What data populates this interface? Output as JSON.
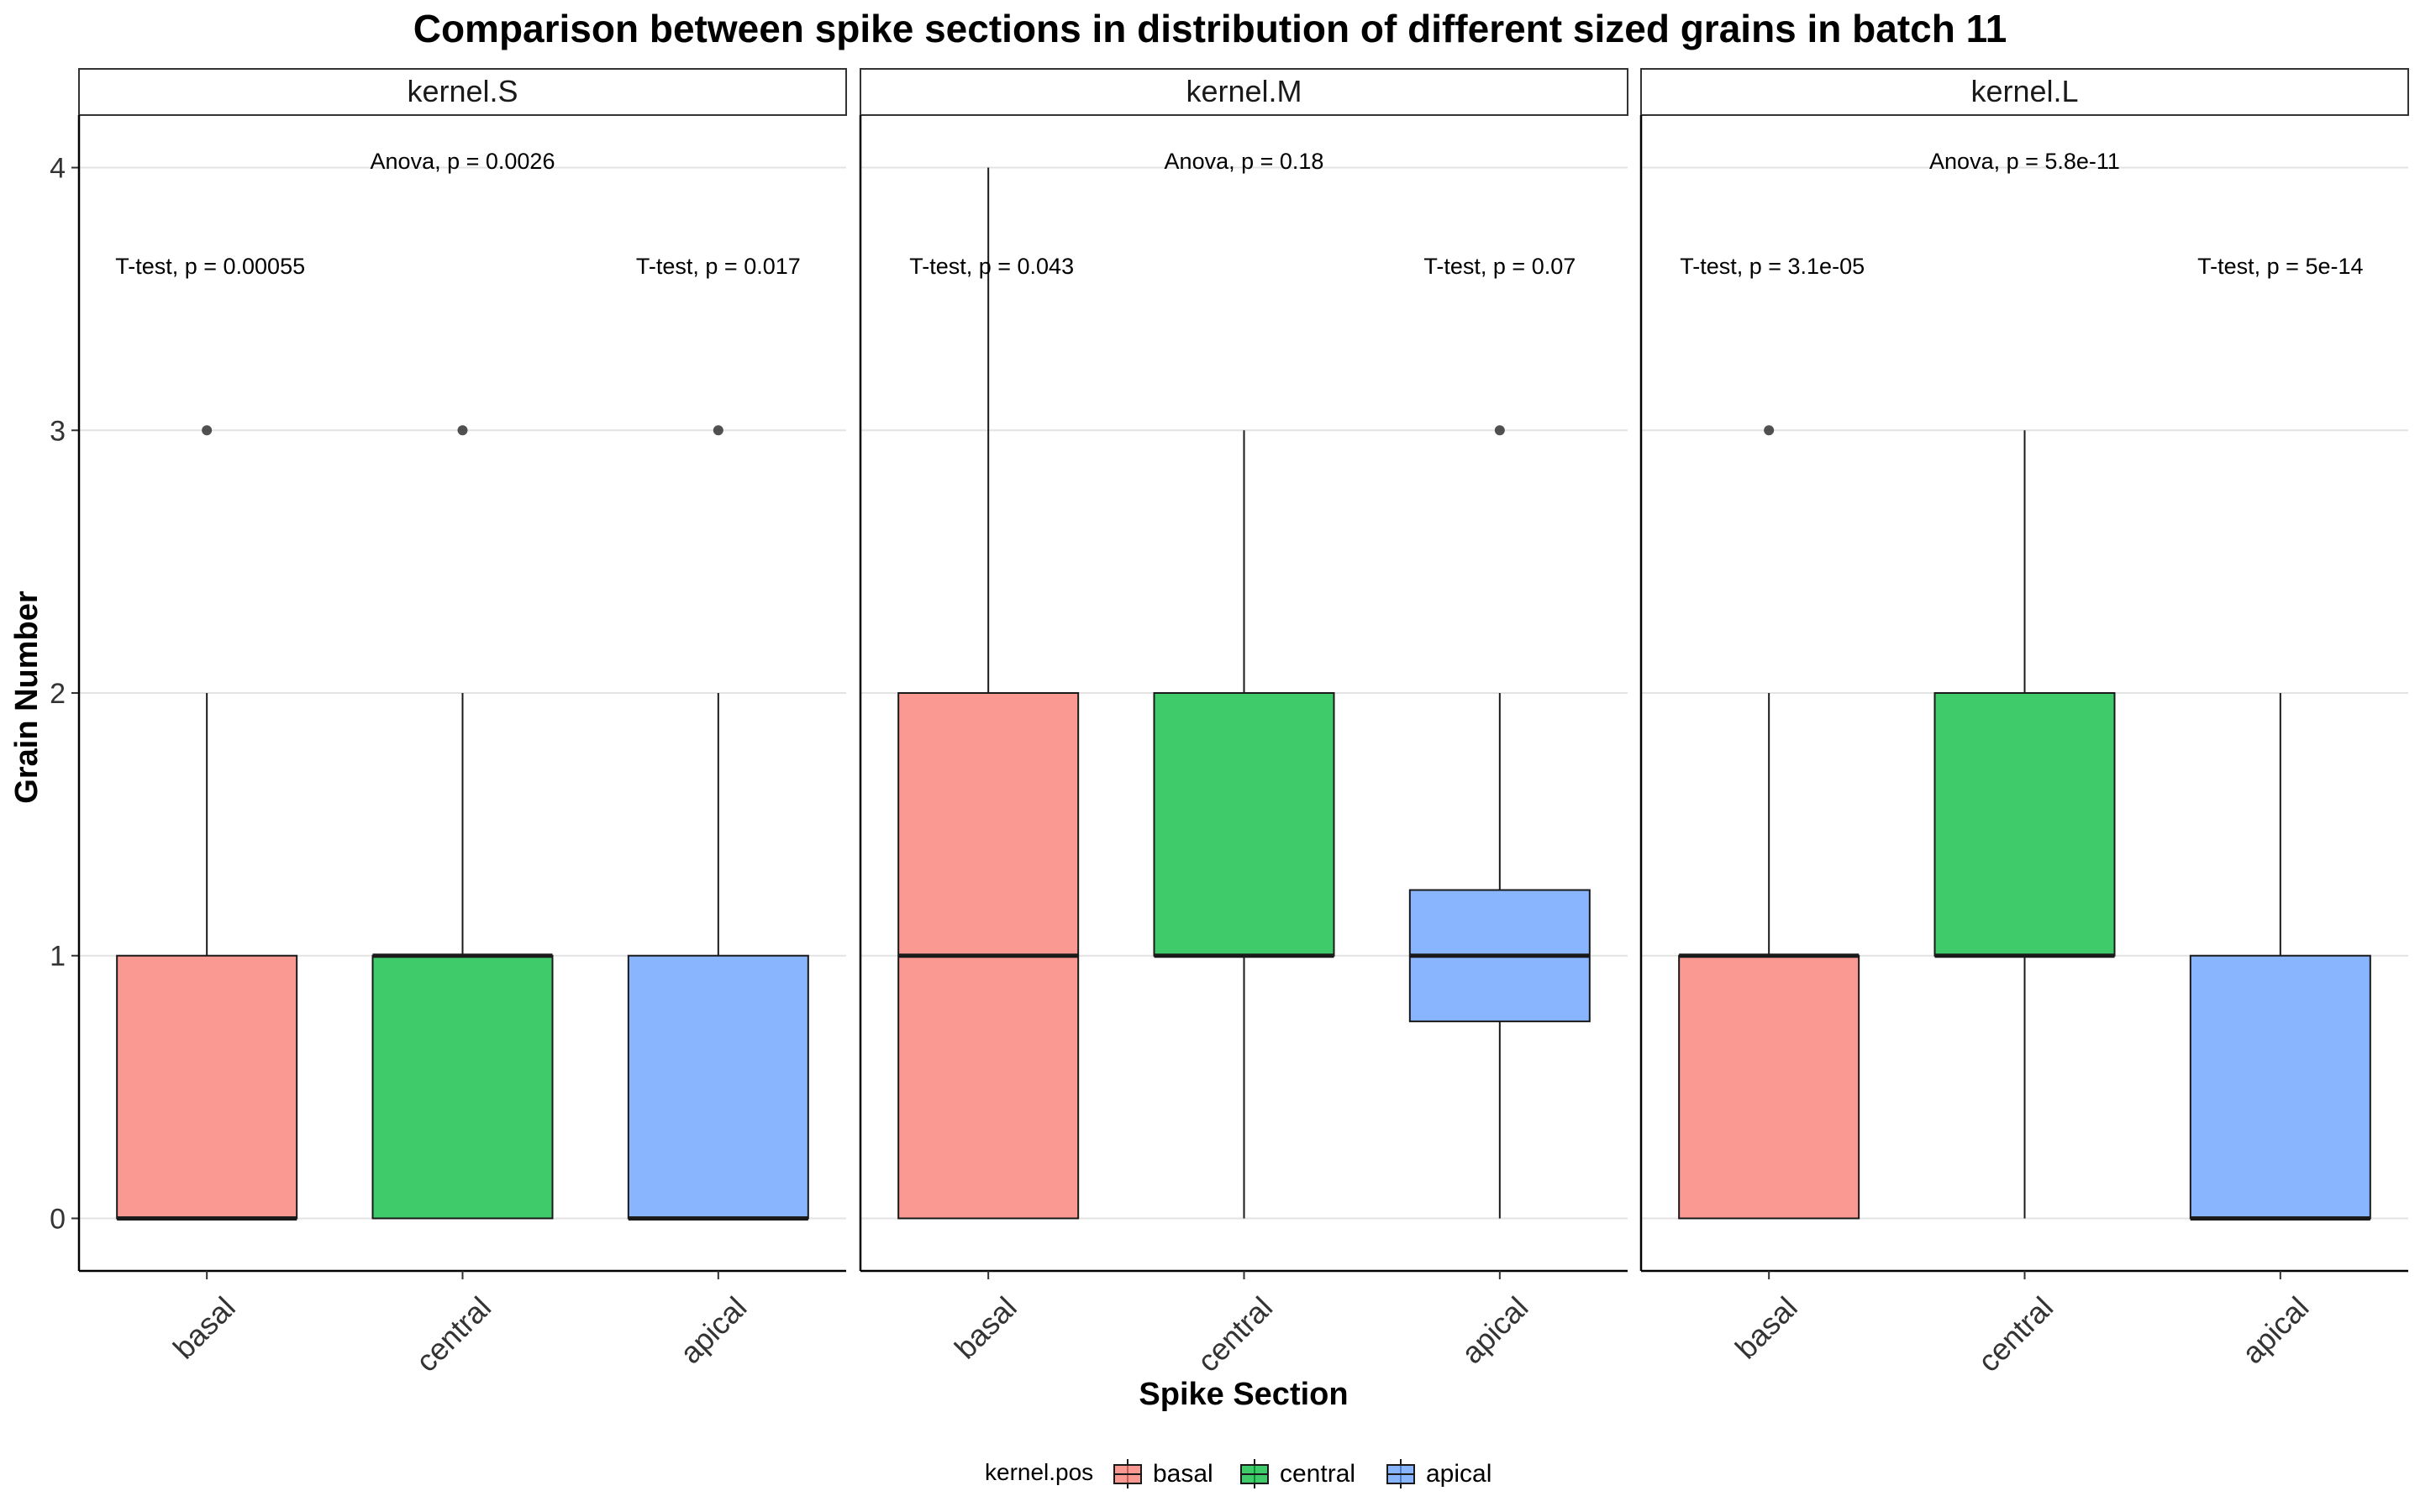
{
  "chart_data": {
    "type": "box",
    "title": "Comparison between spike sections in distribution of different sized grains in batch 11",
    "xlabel": "Spike Section",
    "ylabel": "Grain Number",
    "ylim": [
      -0.2,
      4.2
    ],
    "yticks": [
      0,
      1,
      2,
      3,
      4
    ],
    "categories": [
      "basal",
      "central",
      "apical"
    ],
    "grid": true,
    "legend": {
      "title": "kernel.pos",
      "position": "bottom",
      "entries": [
        {
          "name": "basal",
          "color": "#F8766D"
        },
        {
          "name": "central",
          "color": "#00BA38"
        },
        {
          "name": "apical",
          "color": "#619CFF"
        }
      ]
    },
    "facets": [
      {
        "label": "kernel.S",
        "anova": "Anova, p = 0.0026",
        "ttests": [
          "T-test, p = 0.00055",
          "T-test, p = 0.017"
        ],
        "boxes": [
          {
            "category": "basal",
            "q1": 0,
            "median": 0,
            "q3": 1,
            "whisker_low": 0,
            "whisker_high": 2,
            "outliers": [
              3
            ]
          },
          {
            "category": "central",
            "q1": 0,
            "median": 1,
            "q3": 1,
            "whisker_low": 0,
            "whisker_high": 2,
            "outliers": [
              3
            ]
          },
          {
            "category": "apical",
            "q1": 0,
            "median": 0,
            "q3": 1,
            "whisker_low": 0,
            "whisker_high": 2,
            "outliers": [
              3
            ]
          }
        ]
      },
      {
        "label": "kernel.M",
        "anova": "Anova, p = 0.18",
        "ttests": [
          "T-test, p = 0.043",
          "T-test, p = 0.07"
        ],
        "boxes": [
          {
            "category": "basal",
            "q1": 0,
            "median": 1,
            "q3": 2,
            "whisker_low": 0,
            "whisker_high": 4,
            "outliers": []
          },
          {
            "category": "central",
            "q1": 1,
            "median": 1,
            "q3": 2,
            "whisker_low": 0,
            "whisker_high": 3,
            "outliers": []
          },
          {
            "category": "apical",
            "q1": 0.75,
            "median": 1,
            "q3": 1.25,
            "whisker_low": 0,
            "whisker_high": 2,
            "outliers": [
              3
            ]
          }
        ]
      },
      {
        "label": "kernel.L",
        "anova": "Anova, p = 5.8e-11",
        "ttests": [
          "T-test, p = 3.1e-05",
          "T-test, p = 5e-14"
        ],
        "boxes": [
          {
            "category": "basal",
            "q1": 0,
            "median": 1,
            "q3": 1,
            "whisker_low": 0,
            "whisker_high": 2,
            "outliers": [
              3
            ]
          },
          {
            "category": "central",
            "q1": 1,
            "median": 1,
            "q3": 2,
            "whisker_low": 0,
            "whisker_high": 3,
            "outliers": []
          },
          {
            "category": "apical",
            "q1": 0,
            "median": 0,
            "q3": 1,
            "whisker_low": 0,
            "whisker_high": 2,
            "outliers": []
          }
        ]
      }
    ]
  }
}
